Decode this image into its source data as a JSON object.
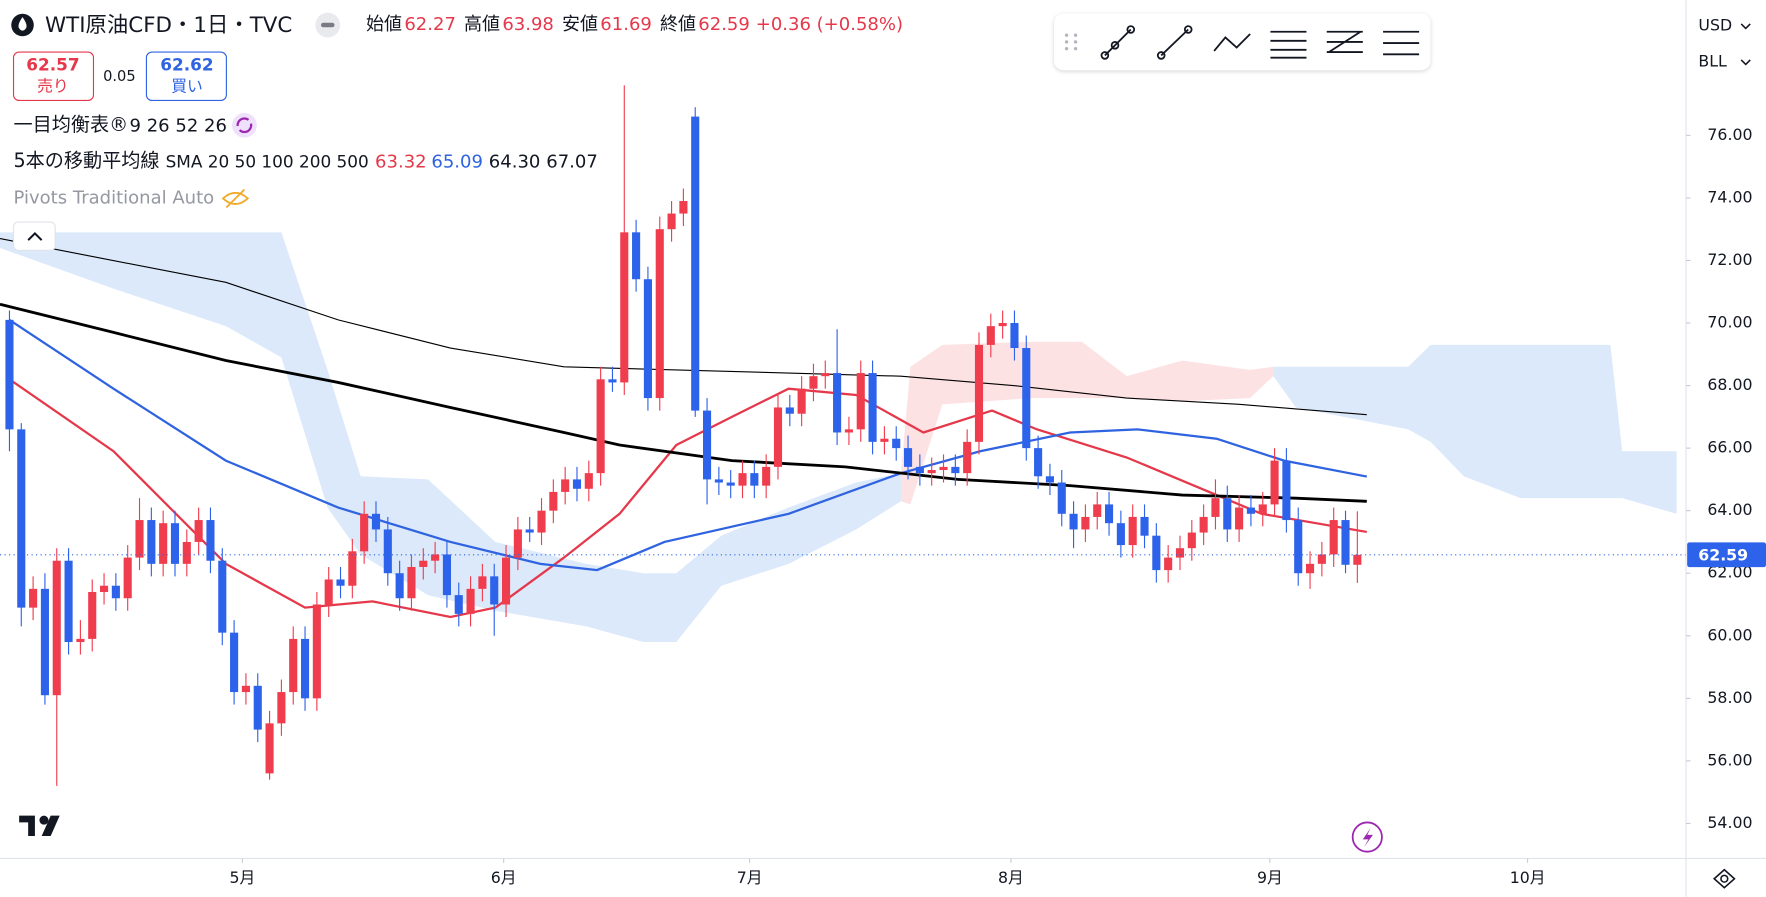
{
  "ui": {
    "title": "WTI原油CFD・1日・TVC",
    "open_label": "始値",
    "high_label": "高値",
    "low_label": "安値",
    "close_label": "終値",
    "change": "+0.36 (+0.58%)",
    "sell_price": "62.57",
    "sell_label": "売り",
    "spread": "0.05",
    "buy_price": "62.62",
    "buy_label": "買い",
    "ichimoku_label": "一目均衡表®",
    "ichimoku_params": "9 26 52 26",
    "ma_label": "5本の移動平均線",
    "ma_params": "SMA 20 50 100 200 500",
    "ma_values": [
      "63.32",
      "65.09",
      "64.30",
      "67.07"
    ],
    "pivots_label": "Pivots Traditional Auto",
    "currency": "USD",
    "unit": "BLL"
  },
  "chart_data": {
    "type": "candlestick",
    "up_color": "#ef3d4e",
    "down_color": "#2d62ea",
    "xlim": [
      -0.8,
      141.8
    ],
    "ylim": [
      52.88,
      80.32
    ],
    "xticks": [
      {
        "value": 19.7,
        "label": "5月"
      },
      {
        "value": 41.8,
        "label": "6月"
      },
      {
        "value": 62.6,
        "label": "7月"
      },
      {
        "value": 84.7,
        "label": "8月"
      },
      {
        "value": 106.6,
        "label": "9月"
      },
      {
        "value": 128.4,
        "label": "10月"
      }
    ],
    "yticks": [
      {
        "value": 54,
        "label": "54.00"
      },
      {
        "value": 56,
        "label": "56.00"
      },
      {
        "value": 58,
        "label": "58.00"
      },
      {
        "value": 60,
        "label": "60.00"
      },
      {
        "value": 62,
        "label": "62.00"
      },
      {
        "value": 64,
        "label": "64.00"
      },
      {
        "value": 66,
        "label": "66.00"
      },
      {
        "value": 68,
        "label": "68.00"
      },
      {
        "value": 70,
        "label": "70.00"
      },
      {
        "value": 72,
        "label": "72.00"
      },
      {
        "value": 74,
        "label": "74.00"
      },
      {
        "value": 76,
        "label": "76.00"
      }
    ],
    "open": [
      70.1,
      66.6,
      60.9,
      61.5,
      58.1,
      62.4,
      59.8,
      59.9,
      61.4,
      61.6,
      61.2,
      62.5,
      63.7,
      62.3,
      63.6,
      62.3,
      63.0,
      63.7,
      62.4,
      60.1,
      58.2,
      58.4,
      55.6,
      57.2,
      58.2,
      59.9,
      58.0,
      61.0,
      61.8,
      61.6,
      62.7,
      63.9,
      63.4,
      62.0,
      61.2,
      62.2,
      62.4,
      62.6,
      61.3,
      60.7,
      61.5,
      61.9,
      61.0,
      62.5,
      63.4,
      63.3,
      64.0,
      64.6,
      65.0,
      64.7,
      65.2,
      68.2,
      68.1,
      72.9,
      71.4,
      67.6,
      73.0,
      73.5,
      76.6,
      67.2,
      65.0,
      64.9,
      64.8,
      65.2,
      64.8,
      65.4,
      67.3,
      67.1,
      67.9,
      68.3,
      68.4,
      66.5,
      66.6,
      68.4,
      66.2,
      66.3,
      66.0,
      65.4,
      65.2,
      65.3,
      65.4,
      65.2,
      66.2,
      69.3,
      69.9,
      70.0,
      69.2,
      66.0,
      65.1,
      64.9,
      63.9,
      63.4,
      63.8,
      64.2,
      63.6,
      62.9,
      63.8,
      63.2,
      62.1,
      62.5,
      62.8,
      63.3,
      63.8,
      64.4,
      63.4,
      64.1,
      63.9,
      64.2,
      65.6,
      63.7,
      62.0,
      62.3,
      62.6,
      63.7,
      62.27
    ],
    "high": [
      70.4,
      66.8,
      61.9,
      62.0,
      62.8,
      62.8,
      60.5,
      61.8,
      62.0,
      62.0,
      62.9,
      64.4,
      64.1,
      64.0,
      64.0,
      63.4,
      64.1,
      64.1,
      62.8,
      60.5,
      58.8,
      58.8,
      57.6,
      58.6,
      60.3,
      60.3,
      61.4,
      62.2,
      62.2,
      63.1,
      64.3,
      64.3,
      63.8,
      62.4,
      62.6,
      62.8,
      63.0,
      63.0,
      61.7,
      61.9,
      62.3,
      62.3,
      62.9,
      63.8,
      63.8,
      64.4,
      65.0,
      65.4,
      65.4,
      65.6,
      68.6,
      68.6,
      77.6,
      73.3,
      71.8,
      73.4,
      73.9,
      74.3,
      76.9,
      67.6,
      65.4,
      65.3,
      65.6,
      65.6,
      65.8,
      67.7,
      67.7,
      68.3,
      68.7,
      68.8,
      69.8,
      67.0,
      68.8,
      68.8,
      66.7,
      66.7,
      66.4,
      65.8,
      65.7,
      65.8,
      65.8,
      66.6,
      69.7,
      70.3,
      70.4,
      70.4,
      69.6,
      66.4,
      65.5,
      65.3,
      64.3,
      64.2,
      64.6,
      64.6,
      64.0,
      64.2,
      64.2,
      63.6,
      62.9,
      63.2,
      63.7,
      64.2,
      65.0,
      64.8,
      64.5,
      64.5,
      64.6,
      66.0,
      66.0,
      64.1,
      62.7,
      63.0,
      64.1,
      64.0,
      63.98
    ],
    "low": [
      65.9,
      60.3,
      60.5,
      57.8,
      55.2,
      59.4,
      59.4,
      59.5,
      61.0,
      60.8,
      60.8,
      62.1,
      61.9,
      61.9,
      61.9,
      61.9,
      62.6,
      62.0,
      59.7,
      57.8,
      57.8,
      56.6,
      55.4,
      56.8,
      57.8,
      57.6,
      57.6,
      60.6,
      61.2,
      61.2,
      62.3,
      63.0,
      61.6,
      60.8,
      60.8,
      61.8,
      62.0,
      60.9,
      60.3,
      60.3,
      61.1,
      60.0,
      60.6,
      62.1,
      63.0,
      62.9,
      63.6,
      64.2,
      64.3,
      64.3,
      64.8,
      67.8,
      67.7,
      71.0,
      67.2,
      67.2,
      72.6,
      73.1,
      67.0,
      64.2,
      64.5,
      64.4,
      64.4,
      64.4,
      64.4,
      65.0,
      66.7,
      66.7,
      67.5,
      67.9,
      66.1,
      66.1,
      66.2,
      65.8,
      65.8,
      65.6,
      65.0,
      64.8,
      64.8,
      64.9,
      64.8,
      64.8,
      65.8,
      68.9,
      69.5,
      68.8,
      65.6,
      64.7,
      64.5,
      63.5,
      62.8,
      63.0,
      63.4,
      63.2,
      62.5,
      62.5,
      62.8,
      61.7,
      61.7,
      62.1,
      62.4,
      62.9,
      63.4,
      63.0,
      63.0,
      63.5,
      63.5,
      63.8,
      63.3,
      61.6,
      61.5,
      61.9,
      62.2,
      62.0,
      61.69
    ],
    "close": [
      66.6,
      60.9,
      61.5,
      58.1,
      62.4,
      59.8,
      59.9,
      61.4,
      61.6,
      61.2,
      62.5,
      63.7,
      62.3,
      63.6,
      62.3,
      63.0,
      63.7,
      62.4,
      60.1,
      58.2,
      58.4,
      57.0,
      57.2,
      58.2,
      59.9,
      58.0,
      61.0,
      61.8,
      61.6,
      62.7,
      63.9,
      63.4,
      62.0,
      61.2,
      62.2,
      62.4,
      62.6,
      61.3,
      60.7,
      61.5,
      61.9,
      61.0,
      62.5,
      63.4,
      63.3,
      64.0,
      64.6,
      65.0,
      64.7,
      65.2,
      68.2,
      68.1,
      72.9,
      71.4,
      67.6,
      73.0,
      73.5,
      73.9,
      67.2,
      65.0,
      64.9,
      64.8,
      65.2,
      64.8,
      65.4,
      67.3,
      67.1,
      67.9,
      68.3,
      68.4,
      66.5,
      66.6,
      68.4,
      66.2,
      66.3,
      66.0,
      65.4,
      65.2,
      65.3,
      65.4,
      65.2,
      66.2,
      69.3,
      69.9,
      70.0,
      69.2,
      66.0,
      65.1,
      64.9,
      63.9,
      63.4,
      63.8,
      64.2,
      63.6,
      62.9,
      63.8,
      63.2,
      62.1,
      62.5,
      62.8,
      63.3,
      63.8,
      64.4,
      63.4,
      64.1,
      63.9,
      64.2,
      65.6,
      63.7,
      62.0,
      62.3,
      62.6,
      63.7,
      62.27,
      62.59
    ],
    "lines": [
      {
        "color": "#e5384a",
        "width": 2,
        "x": [
          0,
          8.8,
          18.3,
          25,
          30.7,
          37.3,
          41.1,
          46.9,
          51.6,
          56.4,
          61.1,
          65.9,
          71.6,
          77.3,
          83.1,
          86.9,
          94.5,
          100.2,
          105.9,
          114.8
        ],
        "values": [
          68.2,
          65.9,
          62.3,
          60.9,
          61.1,
          60.6,
          60.9,
          62.5,
          63.9,
          66.1,
          67.0,
          67.9,
          67.7,
          66.5,
          67.2,
          66.6,
          65.7,
          64.8,
          63.9,
          63.32
        ]
      },
      {
        "color": "#2f63e0",
        "width": 2,
        "x": [
          0,
          8.8,
          18.3,
          27.8,
          37.3,
          44.9,
          49.7,
          55.4,
          65.9,
          75.4,
          82.1,
          89.7,
          95.4,
          102.1,
          107.8,
          114.8
        ],
        "values": [
          70.1,
          67.9,
          65.6,
          64.1,
          63.0,
          62.3,
          62.1,
          63.0,
          63.9,
          65.2,
          65.9,
          66.5,
          66.6,
          66.3,
          65.6,
          65.09
        ]
      },
      {
        "color": "#000000",
        "width": 2.5,
        "x": [
          -0.8,
          8.8,
          18.3,
          27.8,
          37.3,
          46.9,
          51.6,
          61.1,
          70.7,
          80.2,
          89.7,
          99.2,
          108.8,
          114.8
        ],
        "values": [
          70.6,
          69.7,
          68.8,
          68.1,
          67.3,
          66.5,
          66.1,
          65.6,
          65.4,
          65.0,
          64.8,
          64.5,
          64.4,
          64.3
        ]
      },
      {
        "color": "#000000",
        "width": 1,
        "x": [
          -0.8,
          18.3,
          27.8,
          37.3,
          46.9,
          56.4,
          65.9,
          75.4,
          84.9,
          94.5,
          104,
          114.8
        ],
        "values": [
          72.7,
          71.3,
          70.1,
          69.2,
          68.6,
          68.5,
          68.4,
          68.3,
          68.0,
          67.6,
          67.4,
          67.07
        ]
      }
    ],
    "clouds": [
      {
        "color": "#dbe9fb",
        "x": [
          -0.8,
          8.8,
          18.3,
          23,
          26.9,
          29.7,
          35.4,
          41.1,
          48.8,
          53.6,
          56.4,
          60.2,
          65.9,
          71.6,
          75.4
        ],
        "upper": [
          72.9,
          72.9,
          72.9,
          72.9,
          68.5,
          65.1,
          65.0,
          63.0,
          62.3,
          62.0,
          62.0,
          63.2,
          64.1,
          64.9,
          65.2
        ],
        "lower": [
          72.4,
          71.1,
          69.9,
          68.9,
          64.1,
          62.6,
          61.3,
          60.8,
          60.3,
          59.8,
          59.8,
          61.6,
          62.3,
          63.4,
          64.3
        ]
      },
      {
        "color": "#fde2e4",
        "x": [
          75.4,
          76.2,
          78.9,
          86.5,
          90.7,
          94.5,
          99.2,
          104.9,
          106.9
        ],
        "upper": [
          65.2,
          68.6,
          69.3,
          69.4,
          69.4,
          68.3,
          68.8,
          68.5,
          68.6
        ],
        "lower": [
          64.3,
          64.2,
          67.4,
          67.6,
          67.6,
          67.6,
          67.5,
          67.6,
          68.3
        ]
      },
      {
        "color": "#dbe9fb",
        "x": [
          106.9,
          108.8,
          118.3,
          120.2,
          123,
          127.8,
          135.4,
          136.4,
          141
        ],
        "upper": [
          68.6,
          68.6,
          68.6,
          69.3,
          69.3,
          69.3,
          69.3,
          65.9,
          65.9
        ],
        "lower": [
          68.3,
          67.3,
          66.6,
          66.2,
          65.1,
          64.4,
          64.4,
          64.4,
          63.9
        ]
      }
    ]
  }
}
